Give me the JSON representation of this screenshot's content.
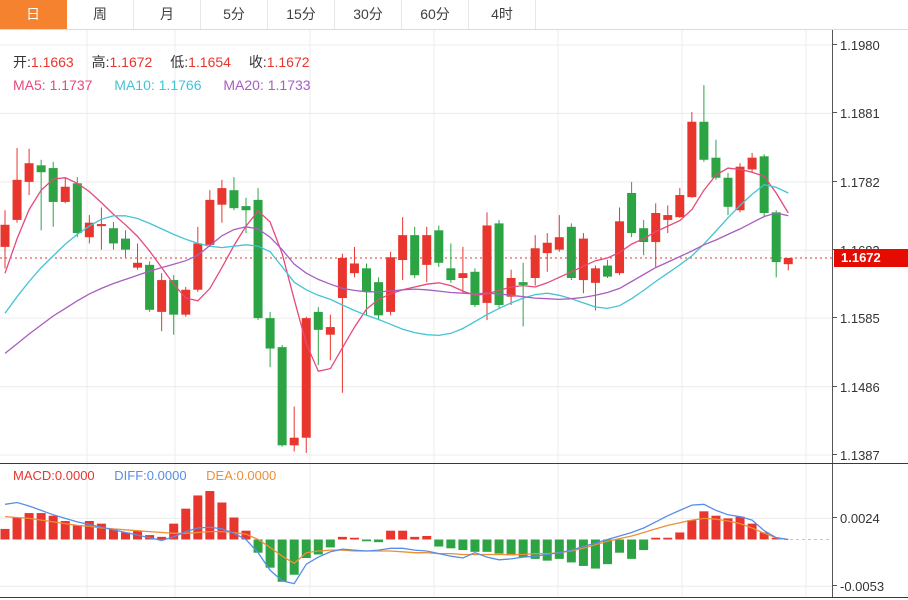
{
  "tabs": [
    {
      "name": "day",
      "label": "日",
      "active": true
    },
    {
      "name": "week",
      "label": "周",
      "active": false
    },
    {
      "name": "month",
      "label": "月",
      "active": false
    },
    {
      "name": "5min",
      "label": "5分",
      "active": false
    },
    {
      "name": "15min",
      "label": "15分",
      "active": false
    },
    {
      "name": "30min",
      "label": "30分",
      "active": false
    },
    {
      "name": "60min",
      "label": "60分",
      "active": false
    },
    {
      "name": "4hour",
      "label": "4时",
      "active": false
    }
  ],
  "legend": {
    "open_label": "开:",
    "open_value": "1.1663",
    "high_label": "高:",
    "high_value": "1.1672",
    "low_label": "低:",
    "low_value": "1.1654",
    "close_label": "收:",
    "close_value": "1.1672",
    "ma5_label": "MA5:",
    "ma5_value": "1.1737",
    "ma10_label": "MA10:",
    "ma10_value": "1.1766",
    "ma20_label": "MA20:",
    "ma20_value": "1.1733"
  },
  "macd_legend": {
    "macd_label": "MACD:",
    "macd_value": "0.0000",
    "diff_label": "DIFF:",
    "diff_value": "0.0000",
    "dea_label": "DEA:",
    "dea_value": "0.0000"
  },
  "price_badge": "1.1672",
  "colors": {
    "up": "#e8352e",
    "down": "#2ca444",
    "ma5": "#e8487c",
    "ma10": "#44c3d5",
    "ma20": "#a75ec2",
    "diff": "#578ee8",
    "dea": "#ee8f33",
    "badge_bg": "#e60b00",
    "tab_active_bg": "#f5822e",
    "grid": "#ececec",
    "axis": "#555555",
    "dotted_line": "#e8352e",
    "zero_dash": "#a5cfe3"
  },
  "chart_data": {
    "type": "candlestick",
    "title": "",
    "legend_position": "top-left",
    "grid": true,
    "main": {
      "price_ticks": [
        1.198,
        1.1881,
        1.1782,
        1.1683,
        1.1585,
        1.1486,
        1.1387
      ],
      "price_top": 1.198,
      "price_bottom": 1.1387,
      "current_price": 1.1672,
      "candles": [
        [
          1.1688,
          1.1741,
          1.1657,
          1.172
        ],
        [
          1.1727,
          1.1831,
          1.1723,
          1.1785
        ],
        [
          1.1782,
          1.183,
          1.1763,
          1.1809
        ],
        [
          1.1806,
          1.1814,
          1.1712,
          1.1796
        ],
        [
          1.1802,
          1.1811,
          1.1717,
          1.1753
        ],
        [
          1.1753,
          1.1788,
          1.1751,
          1.1775
        ],
        [
          1.178,
          1.1789,
          1.1702,
          1.1708
        ],
        [
          1.1702,
          1.1734,
          1.1693,
          1.1723
        ],
        [
          1.1718,
          1.1745,
          1.1684,
          1.1721
        ],
        [
          1.1715,
          1.1724,
          1.1684,
          1.1693
        ],
        [
          1.17,
          1.1712,
          1.1673,
          1.1684
        ],
        [
          1.1658,
          1.1693,
          1.1655,
          1.1665
        ],
        [
          1.1662,
          1.1667,
          1.1594,
          1.1597
        ],
        [
          1.1594,
          1.165,
          1.1566,
          1.164
        ],
        [
          1.164,
          1.1647,
          1.1561,
          1.159
        ],
        [
          1.159,
          1.163,
          1.1587,
          1.1626
        ],
        [
          1.1626,
          1.1717,
          1.1623,
          1.1693
        ],
        [
          1.1691,
          1.177,
          1.1688,
          1.1756
        ],
        [
          1.1749,
          1.1785,
          1.1723,
          1.1773
        ],
        [
          1.177,
          1.1789,
          1.1741,
          1.1744
        ],
        [
          1.1747,
          1.1759,
          1.1708,
          1.1741
        ],
        [
          1.1756,
          1.1773,
          1.1582,
          1.1585
        ],
        [
          1.1585,
          1.1594,
          1.1514,
          1.1541
        ],
        [
          1.1543,
          1.1546,
          1.1399,
          1.1401
        ],
        [
          1.1401,
          1.1457,
          1.1392,
          1.1412
        ],
        [
          1.1412,
          1.1587,
          1.139,
          1.1585
        ],
        [
          1.1594,
          1.1601,
          1.1517,
          1.1568
        ],
        [
          1.1561,
          1.159,
          1.1524,
          1.1572
        ],
        [
          1.1614,
          1.1678,
          1.1477,
          1.1672
        ],
        [
          1.165,
          1.1688,
          1.1644,
          1.1664
        ],
        [
          1.1657,
          1.1664,
          1.1589,
          1.1623
        ],
        [
          1.1637,
          1.1644,
          1.1582,
          1.1589
        ],
        [
          1.1594,
          1.1681,
          1.1589,
          1.1673
        ],
        [
          1.1669,
          1.1731,
          1.164,
          1.1705
        ],
        [
          1.1705,
          1.1717,
          1.1643,
          1.1647
        ],
        [
          1.1662,
          1.1717,
          1.1637,
          1.1705
        ],
        [
          1.1712,
          1.1719,
          1.1659,
          1.1665
        ],
        [
          1.1657,
          1.1693,
          1.1636,
          1.164
        ],
        [
          1.1643,
          1.1688,
          1.1621,
          1.165
        ],
        [
          1.1652,
          1.1657,
          1.1601,
          1.1604
        ],
        [
          1.1607,
          1.1738,
          1.1582,
          1.1719
        ],
        [
          1.1722,
          1.1727,
          1.16,
          1.1604
        ],
        [
          1.1616,
          1.1655,
          1.1604,
          1.1643
        ],
        [
          1.1637,
          1.1665,
          1.1573,
          1.1633
        ],
        [
          1.1643,
          1.1705,
          1.1632,
          1.1686
        ],
        [
          1.1679,
          1.1708,
          1.1652,
          1.1694
        ],
        [
          1.1684,
          1.1734,
          1.1681,
          1.1702
        ],
        [
          1.1717,
          1.1722,
          1.164,
          1.1643
        ],
        [
          1.164,
          1.1708,
          1.1621,
          1.17
        ],
        [
          1.1636,
          1.1661,
          1.1596,
          1.1657
        ],
        [
          1.1661,
          1.1669,
          1.1643,
          1.1645
        ],
        [
          1.165,
          1.1745,
          1.1647,
          1.1725
        ],
        [
          1.1766,
          1.1782,
          1.1702,
          1.1708
        ],
        [
          1.1715,
          1.1727,
          1.1676,
          1.1695
        ],
        [
          1.1695,
          1.1751,
          1.1659,
          1.1737
        ],
        [
          1.1727,
          1.1748,
          1.1708,
          1.1734
        ],
        [
          1.1731,
          1.1773,
          1.173,
          1.1763
        ],
        [
          1.176,
          1.1883,
          1.1759,
          1.1869
        ],
        [
          1.1869,
          1.1922,
          1.1811,
          1.1814
        ],
        [
          1.1817,
          1.1843,
          1.1785,
          1.1788
        ],
        [
          1.1788,
          1.1795,
          1.1734,
          1.1746
        ],
        [
          1.1741,
          1.1809,
          1.1738,
          1.1804
        ],
        [
          1.18,
          1.1824,
          1.1795,
          1.1817
        ],
        [
          1.1819,
          1.1822,
          1.1731,
          1.1737
        ],
        [
          1.1738,
          1.1741,
          1.1644,
          1.1666
        ],
        [
          1.1663,
          1.1672,
          1.1654,
          1.1672
        ]
      ],
      "ma5": [
        1.165,
        1.17,
        1.1742,
        1.177,
        1.1786,
        1.1788,
        1.178,
        1.1768,
        1.1752,
        1.1735,
        1.172,
        1.1703,
        1.1682,
        1.1658,
        1.1634,
        1.1614,
        1.161,
        1.1628,
        1.1658,
        1.169,
        1.1718,
        1.174,
        1.1724,
        1.1678,
        1.1612,
        1.1548,
        1.1508,
        1.1512,
        1.1542,
        1.1572,
        1.1598,
        1.1612,
        1.162,
        1.1626,
        1.163,
        1.1634,
        1.1636,
        1.1632,
        1.1624,
        1.1618,
        1.162,
        1.1625,
        1.163,
        1.1632,
        1.163,
        1.1636,
        1.1644,
        1.1652,
        1.166,
        1.1668,
        1.1672,
        1.168,
        1.1692,
        1.17,
        1.171,
        1.1718,
        1.1726,
        1.1742,
        1.177,
        1.1792,
        1.1802,
        1.18,
        1.1796,
        1.179,
        1.1766,
        1.1737
      ],
      "ma10": [
        1.1592,
        1.1616,
        1.1638,
        1.1658,
        1.1675,
        1.1692,
        1.1706,
        1.1718,
        1.1728,
        1.1733,
        1.1733,
        1.1729,
        1.1722,
        1.1714,
        1.1706,
        1.1699,
        1.1693,
        1.1689,
        1.1687,
        1.1689,
        1.1691,
        1.1689,
        1.1681,
        1.1659,
        1.1637,
        1.1626,
        1.1618,
        1.1612,
        1.1604,
        1.1596,
        1.1589,
        1.1583,
        1.1576,
        1.1569,
        1.1564,
        1.1561,
        1.156,
        1.1563,
        1.157,
        1.158,
        1.159,
        1.1599,
        1.1607,
        1.1614,
        1.1619,
        1.1621,
        1.1618,
        1.1613,
        1.1607,
        1.1601,
        1.1599,
        1.1603,
        1.1613,
        1.1625,
        1.1638,
        1.165,
        1.1662,
        1.1675,
        1.1692,
        1.1711,
        1.173,
        1.1748,
        1.1764,
        1.1778,
        1.1774,
        1.1766
      ],
      "ma20": [
        1.1534,
        1.1548,
        1.1562,
        1.1575,
        1.1588,
        1.1599,
        1.161,
        1.162,
        1.1628,
        1.1635,
        1.1641,
        1.1647,
        1.1653,
        1.1658,
        1.1663,
        1.1668,
        1.1676,
        1.169,
        1.1704,
        1.1713,
        1.1717,
        1.1714,
        1.1702,
        1.1684,
        1.1663,
        1.165,
        1.1641,
        1.1634,
        1.1628,
        1.1625,
        1.1623,
        1.1623,
        1.1624,
        1.1626,
        1.1627,
        1.1626,
        1.1624,
        1.1622,
        1.1621,
        1.162,
        1.1621,
        1.162,
        1.1618,
        1.1616,
        1.1614,
        1.1613,
        1.1612,
        1.1613,
        1.1615,
        1.1618,
        1.1622,
        1.1628,
        1.1638,
        1.1648,
        1.1658,
        1.1666,
        1.1674,
        1.1682,
        1.1691,
        1.1698,
        1.1706,
        1.1714,
        1.1723,
        1.1732,
        1.1737,
        1.1733
      ]
    },
    "macd": {
      "ticks": [
        0.0024,
        -0.0053
      ],
      "hist": [
        0.0012,
        0.0025,
        0.003,
        0.003,
        0.0027,
        0.0021,
        0.0016,
        0.0021,
        0.0018,
        0.0012,
        0.0008,
        0.001,
        0.0005,
        0.0003,
        0.0018,
        0.0035,
        0.005,
        0.0055,
        0.0042,
        0.0025,
        0.001,
        -0.0015,
        -0.0032,
        -0.0048,
        -0.004,
        -0.0021,
        -0.0017,
        -0.0009,
        0.0003,
        0.0002,
        -0.0002,
        -0.0003,
        0.001,
        0.001,
        0.0003,
        0.0004,
        -0.0008,
        -0.001,
        -0.0012,
        -0.0014,
        -0.0014,
        -0.0016,
        -0.0018,
        -0.002,
        -0.0022,
        -0.0024,
        -0.0022,
        -0.0026,
        -0.003,
        -0.0033,
        -0.0028,
        -0.0015,
        -0.0022,
        -0.0012,
        0.0002,
        0.0002,
        0.0008,
        0.0022,
        0.0032,
        0.0027,
        0.0024,
        0.0026,
        0.0018,
        0.0008,
        0.0002,
        0.0
      ],
      "diff": [
        0.004,
        0.0042,
        0.0038,
        0.0033,
        0.0028,
        0.0024,
        0.002,
        0.0017,
        0.0014,
        0.0011,
        0.0008,
        0.0005,
        0.0002,
        -0.0001,
        0.0003,
        0.0009,
        0.0013,
        0.0014,
        0.0012,
        0.0007,
        0.0,
        -0.0015,
        -0.0035,
        -0.0047,
        -0.005,
        -0.0028,
        -0.002,
        -0.0014,
        -0.0011,
        -0.0012,
        -0.0013,
        -0.0012,
        -0.001,
        -0.001,
        -0.0012,
        -0.0013,
        -0.0016,
        -0.0019,
        -0.0021,
        -0.0015,
        -0.002,
        -0.0023,
        -0.0022,
        -0.002,
        -0.0019,
        -0.0017,
        -0.0015,
        -0.0012,
        -0.0008,
        -0.0004,
        0.0,
        0.0004,
        0.0008,
        0.0013,
        0.002,
        0.0027,
        0.0033,
        0.0039,
        0.004,
        0.0033,
        0.0028,
        0.0026,
        0.0022,
        0.001,
        0.0002,
        0.0
      ],
      "dea": [
        0.0026,
        0.0025,
        0.0024,
        0.0022,
        0.002,
        0.0018,
        0.0016,
        0.0015,
        0.0013,
        0.0012,
        0.0011,
        0.001,
        0.0009,
        0.0008,
        0.0007,
        0.0007,
        0.0008,
        0.0009,
        0.0009,
        0.0008,
        0.0006,
        0.0,
        -0.0009,
        -0.0019,
        -0.0027,
        -0.0015,
        -0.0013,
        -0.0012,
        -0.0012,
        -0.0013,
        -0.0013,
        -0.0013,
        -0.0013,
        -0.0014,
        -0.0015,
        -0.0015,
        -0.0016,
        -0.0016,
        -0.0017,
        -0.0017,
        -0.0017,
        -0.0017,
        -0.0017,
        -0.0017,
        -0.0016,
        -0.0016,
        -0.0015,
        -0.0013,
        -0.001,
        -0.0006,
        -0.0002,
        0.0001,
        0.0004,
        0.0008,
        0.0012,
        0.0016,
        0.0019,
        0.0022,
        0.0024,
        0.0023,
        0.0021,
        0.0018,
        0.0013,
        0.0007,
        0.0002,
        0.0
      ]
    }
  }
}
